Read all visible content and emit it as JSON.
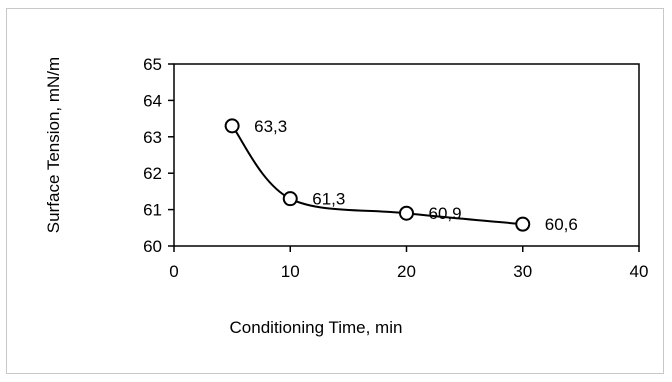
{
  "chart_data": {
    "type": "line",
    "title": "",
    "xlabel": "Conditioning Time, min",
    "ylabel": "Surface Tension, mN/m",
    "xlim": [
      0,
      40
    ],
    "ylim": [
      60,
      65
    ],
    "x_ticks": [
      0,
      10,
      20,
      30,
      40
    ],
    "y_ticks": [
      60,
      61,
      62,
      63,
      64,
      65
    ],
    "x_tick_labels": [
      "0",
      "10",
      "20",
      "30",
      "40"
    ],
    "y_tick_labels": [
      "60",
      "61",
      "62",
      "63",
      "64",
      "65"
    ],
    "grid": false,
    "legend": "none",
    "series": [
      {
        "x": [
          5,
          10,
          20,
          30
        ],
        "y": [
          63.3,
          61.3,
          60.9,
          60.6
        ],
        "labels": [
          "63,3",
          "61,3",
          "60,9",
          "60,6"
        ],
        "marker": "open-circle",
        "smooth": true,
        "color": "#000000"
      }
    ]
  }
}
